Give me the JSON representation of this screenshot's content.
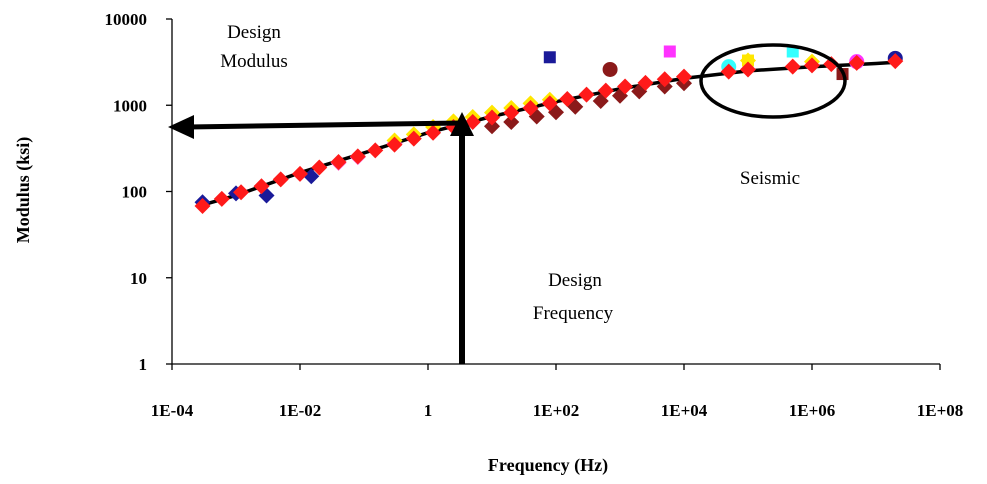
{
  "chart_data": {
    "type": "scatter",
    "xlabel": "Frequency (Hz)",
    "ylabel": "Modulus (ksi)",
    "x_scale": "log",
    "y_scale": "log",
    "xlim": [
      0.0001,
      100000000
    ],
    "ylim": [
      1,
      10000
    ],
    "x_ticks": [
      "1E-04",
      "1E-02",
      "1",
      "1E+02",
      "1E+04",
      "1E+06",
      "1E+08"
    ],
    "y_ticks": [
      "1",
      "10",
      "100",
      "1000",
      "10000"
    ],
    "grid": false,
    "legend": "none",
    "annotations": {
      "design_modulus": [
        "Design",
        "Modulus"
      ],
      "design_frequency": [
        "Design",
        "Frequency"
      ],
      "seismic": "Seismic"
    },
    "design_point": {
      "frequency": 4,
      "modulus": 600
    },
    "design_modulus_value": 520,
    "circled_region": {
      "frequency_range": [
        20000,
        10000000
      ],
      "modulus": 2500
    },
    "series": [
      {
        "marker": "diamond",
        "color": "#ff1a1a",
        "x": [
          0.0003,
          0.0006,
          0.0012,
          0.0025,
          0.005,
          0.01,
          0.02,
          0.04,
          0.08,
          0.15,
          0.3,
          0.6,
          1.2,
          2.5,
          5,
          10,
          20,
          40,
          80,
          150,
          300,
          600,
          1200,
          2500,
          5000,
          10000,
          50000,
          100000,
          500000,
          1000000,
          2000000,
          5000000,
          20000000
        ],
        "y": [
          68,
          82,
          98,
          115,
          138,
          160,
          190,
          220,
          255,
          300,
          350,
          410,
          480,
          560,
          640,
          720,
          820,
          930,
          1050,
          1180,
          1330,
          1480,
          1650,
          1820,
          2000,
          2150,
          2450,
          2600,
          2800,
          2900,
          3000,
          3100,
          3250
        ]
      },
      {
        "marker": "diamond",
        "color": "#8b1a1a",
        "x": [
          10,
          20,
          50,
          100,
          200,
          500,
          1000,
          2000,
          5000,
          10000
        ],
        "y": [
          570,
          640,
          740,
          830,
          960,
          1120,
          1290,
          1450,
          1650,
          1800
        ]
      },
      {
        "marker": "diamond",
        "color": "#ffe600",
        "x": [
          0.3,
          0.6,
          1.2,
          2.5,
          5,
          10,
          20,
          40,
          80,
          100000,
          1000000
        ],
        "y": [
          390,
          460,
          560,
          650,
          730,
          820,
          930,
          1050,
          1160,
          3300,
          3200
        ]
      },
      {
        "marker": "diamond",
        "color": "#1a1a99",
        "x": [
          0.0003,
          0.001,
          0.003,
          0.015
        ],
        "y": [
          75,
          95,
          90,
          150
        ]
      },
      {
        "marker": "diamond",
        "color": "#ff66cc",
        "x": [
          0.04,
          0.08,
          0.3
        ],
        "y": [
          215,
          250,
          360
        ]
      },
      {
        "marker": "square",
        "color": "#1a1a99",
        "x": [
          80
        ],
        "y": [
          3600
        ]
      },
      {
        "marker": "square",
        "color": "#ff33ff",
        "x": [
          6000
        ],
        "y": [
          4200
        ]
      },
      {
        "marker": "square",
        "color": "#33ffff",
        "x": [
          500000
        ],
        "y": [
          4200
        ]
      },
      {
        "marker": "square",
        "color": "#ffe600",
        "x": [
          100000
        ],
        "y": [
          3300
        ]
      },
      {
        "marker": "square",
        "color": "#8b1a1a",
        "x": [
          3000000
        ],
        "y": [
          2300
        ]
      },
      {
        "marker": "circle",
        "color": "#8b1a1a",
        "x": [
          700
        ],
        "y": [
          2600
        ]
      },
      {
        "marker": "circle",
        "color": "#33ffff",
        "x": [
          50000
        ],
        "y": [
          2800
        ]
      },
      {
        "marker": "circle",
        "color": "#1a1a99",
        "x": [
          20000000
        ],
        "y": [
          3500
        ]
      },
      {
        "marker": "circle",
        "color": "#ff33ff",
        "x": [
          5000000
        ],
        "y": [
          3200
        ]
      }
    ],
    "fit_line": {
      "color": "#000000",
      "x": [
        0.0003,
        0.001,
        0.01,
        0.1,
        1,
        10,
        100,
        1000,
        10000,
        100000,
        1000000,
        10000000,
        20000000
      ],
      "y": [
        70,
        90,
        165,
        280,
        480,
        740,
        1100,
        1550,
        2050,
        2500,
        2800,
        3050,
        3150
      ]
    }
  }
}
